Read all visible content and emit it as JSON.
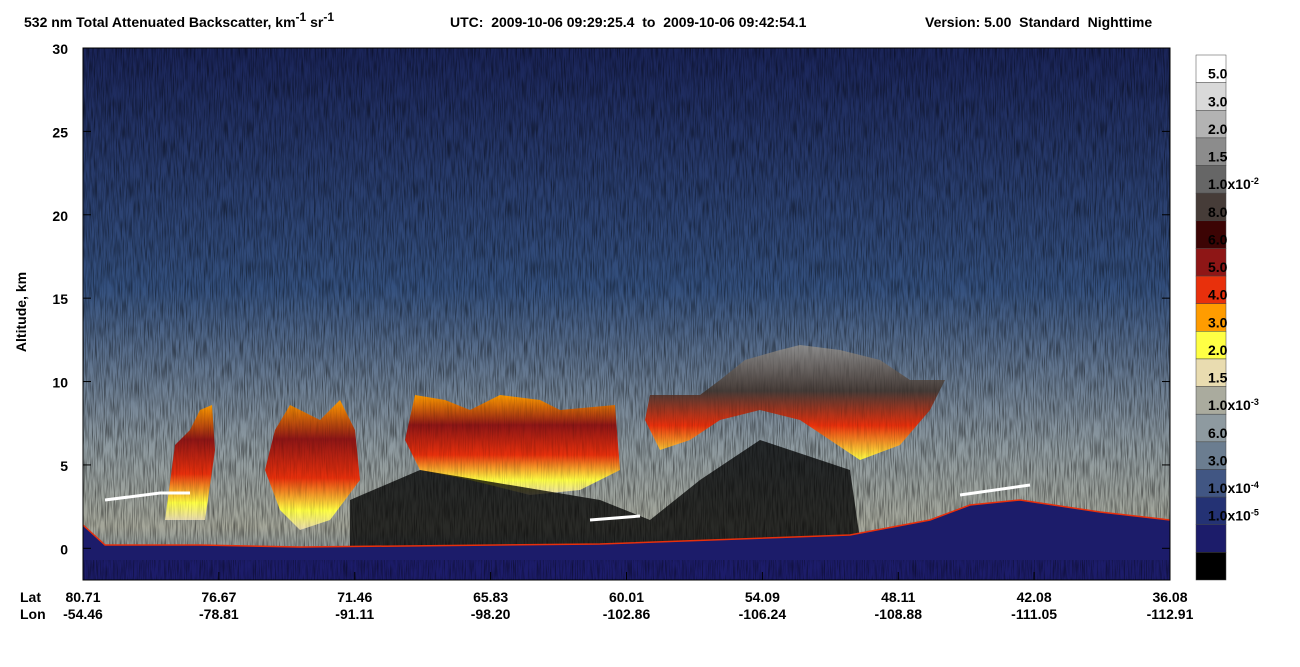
{
  "chart_data": {
    "type": "curtain",
    "title": [
      "532 nm Total Attenuated Backscatter, km",
      "-1",
      " sr",
      "-1"
    ],
    "utc": "UTC:  2009-10-06 09:29:25.4  to  2009-10-06 09:42:54.1",
    "version": "Version: 5.00  Standard  Nighttime",
    "ylabel": "Altitude, km",
    "ylim": [
      -1.9,
      30
    ],
    "yticks": [
      0,
      5,
      10,
      15,
      20,
      25,
      30
    ],
    "x_row_labels": [
      "Lat",
      "Lon"
    ],
    "lat": [
      80.71,
      76.67,
      71.46,
      65.83,
      60.01,
      54.09,
      48.11,
      42.08,
      36.08
    ],
    "lon": [
      -54.46,
      -78.81,
      -91.11,
      -98.2,
      -102.86,
      -106.24,
      -108.88,
      -111.05,
      -112.91
    ],
    "lon_labels": [
      "-54.46",
      "-78.81",
      "-91.11",
      "-98.20",
      "-102.86",
      "-106.24",
      "-108.88",
      "-111.05",
      "-112.91"
    ],
    "colorbar": {
      "colors": [
        "#ffffff",
        "#d9d9d9",
        "#b3b3b3",
        "#8c8c8c",
        "#666666",
        "#463c38",
        "#3c0404",
        "#8e1616",
        "#e8300c",
        "#ff9c00",
        "#ffff44",
        "#e9dcb0",
        "#aaab9e",
        "#8e9aa0",
        "#6b7d90",
        "#415683",
        "#243274",
        "#1c1c6a",
        "#000000"
      ],
      "labels": [
        {
          "text": "5.0"
        },
        {
          "text": "3.0"
        },
        {
          "text": "2.0"
        },
        {
          "text": "1.5"
        },
        {
          "text": "1.0x10",
          "exp": "-2"
        },
        {
          "text": "8.0"
        },
        {
          "text": "6.0"
        },
        {
          "text": "5.0"
        },
        {
          "text": "4.0"
        },
        {
          "text": "3.0"
        },
        {
          "text": "2.0"
        },
        {
          "text": "1.5"
        },
        {
          "text": "1.0x10",
          "exp": "-3"
        },
        {
          "text": "6.0"
        },
        {
          "text": "3.0"
        },
        {
          "text": "1.0x10",
          "exp": "-4"
        },
        {
          "text": "1.0x10",
          "exp": "-5"
        }
      ]
    }
  }
}
